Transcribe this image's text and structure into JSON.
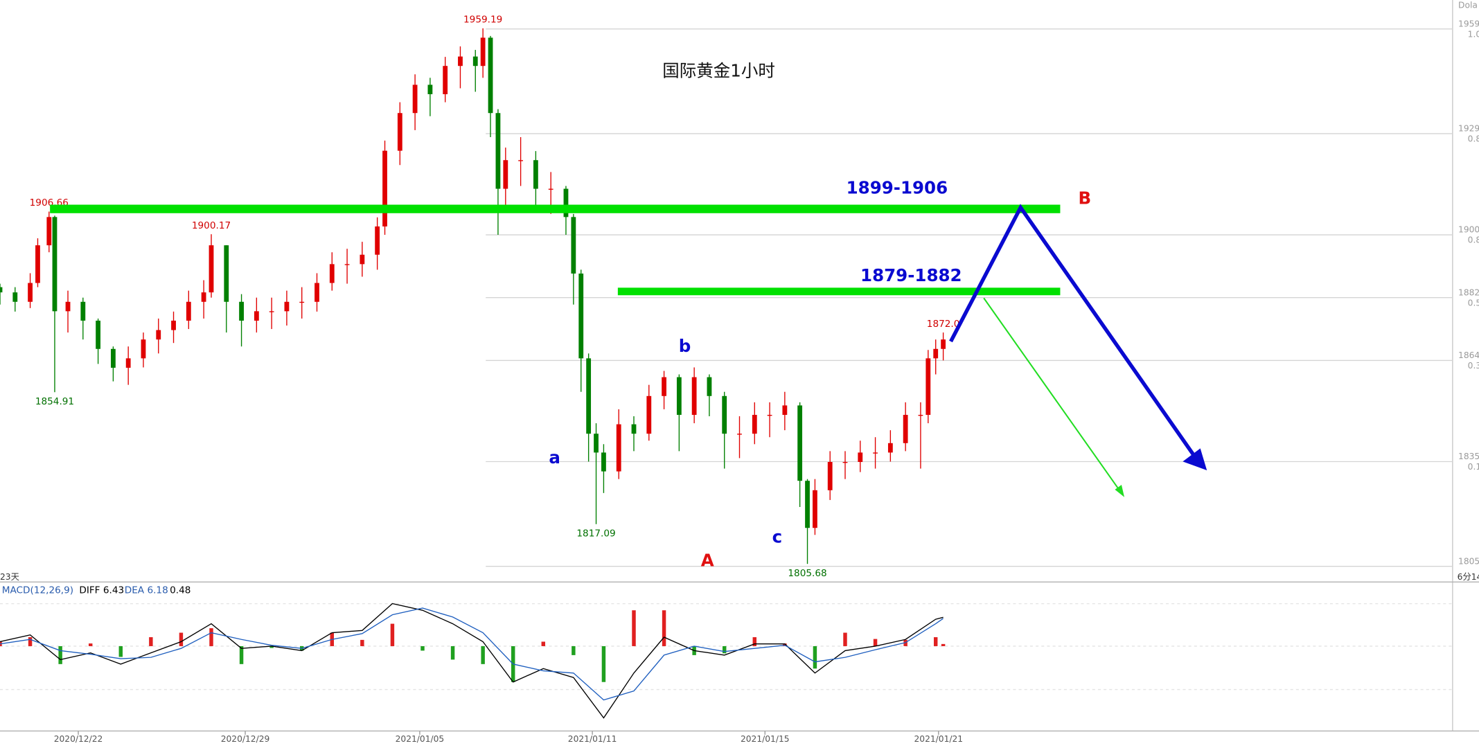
{
  "chart_data": [
    {
      "type": "candlestick",
      "title": "国际黄金1小时",
      "x": [
        0,
        8,
        16,
        20,
        26,
        29,
        36,
        44,
        52,
        60,
        68,
        76,
        84,
        92,
        100,
        108,
        112,
        120,
        128,
        136,
        144,
        152,
        160,
        168,
        176,
        184,
        192,
        200,
        204,
        212,
        220,
        228,
        236,
        244,
        252,
        256,
        260,
        264,
        268,
        276,
        284,
        292,
        300,
        304,
        308,
        312,
        316,
        320,
        328,
        336,
        344,
        352,
        360,
        368,
        376,
        384,
        392,
        400,
        408,
        416,
        424,
        428,
        432,
        440,
        448,
        456,
        464,
        472,
        480,
        488,
        492,
        496,
        500
      ],
      "open": [
        1885,
        1883.5,
        1880.8,
        1886.2,
        1897.0,
        1905.1,
        1878.1,
        1880.8,
        1875.4,
        1867.3,
        1861.9,
        1864.6,
        1870.0,
        1872.7,
        1875.4,
        1880.8,
        1883.5,
        1897.0,
        1880.8,
        1875.4,
        1878.1,
        1878.1,
        1880.8,
        1880.8,
        1886.2,
        1891.6,
        1891.6,
        1894.3,
        1902.4,
        1924.1,
        1934.9,
        1943.0,
        1940.3,
        1948.4,
        1951.1,
        1948.4,
        1956.5,
        1934.9,
        1913.2,
        1921.4,
        1921.4,
        1913.2,
        1913.2,
        1905.1,
        1888.9,
        1864.6,
        1843.0,
        1837.6,
        1832.2,
        1845.7,
        1843.0,
        1853.8,
        1859.2,
        1848.4,
        1859.2,
        1853.8,
        1843.0,
        1843.0,
        1848.4,
        1848.4,
        1851.1,
        1829.5,
        1816.0,
        1826.8,
        1834.9,
        1834.9,
        1837.6,
        1837.6,
        1840.3,
        1848.4,
        1848.4,
        1864.6,
        1867.3
      ],
      "high": [
        1886,
        1885,
        1889,
        1899,
        1906.66,
        1905.5,
        1884,
        1882,
        1876,
        1868,
        1868,
        1872,
        1876,
        1878,
        1884,
        1887,
        1900.17,
        1897,
        1883,
        1882,
        1882,
        1884,
        1885,
        1889,
        1895,
        1896,
        1898,
        1905,
        1927,
        1938,
        1946,
        1945,
        1951,
        1954,
        1953,
        1959.19,
        1957,
        1936,
        1925,
        1928,
        1924,
        1918,
        1914,
        1906,
        1890,
        1866,
        1846,
        1840,
        1850,
        1848,
        1857,
        1861,
        1860,
        1862,
        1860,
        1855,
        1848,
        1852,
        1852,
        1855,
        1852,
        1830,
        1830,
        1838,
        1838,
        1841,
        1842,
        1844,
        1852,
        1852,
        1867,
        1870,
        1872
      ],
      "low": [
        1880,
        1878,
        1879,
        1885,
        1895,
        1854.91,
        1872,
        1870,
        1863,
        1858,
        1857,
        1862,
        1866,
        1869,
        1873,
        1876,
        1882,
        1872,
        1868,
        1872,
        1873,
        1874,
        1876,
        1878,
        1884,
        1886,
        1888,
        1890,
        1900,
        1920,
        1930,
        1934,
        1938,
        1942,
        1941,
        1945,
        1928,
        1900,
        1908,
        1914,
        1908,
        1906,
        1900,
        1880,
        1855,
        1835,
        1817.09,
        1826,
        1830,
        1838,
        1841,
        1850,
        1838,
        1846,
        1848,
        1833,
        1836,
        1840,
        1842,
        1844,
        1822,
        1805.68,
        1814,
        1824,
        1830,
        1832,
        1833,
        1835,
        1838,
        1833,
        1846,
        1860,
        1864
      ],
      "close": [
        1883.5,
        1880.8,
        1886.2,
        1897.0,
        1905.1,
        1878.1,
        1880.8,
        1875.4,
        1867.3,
        1861.9,
        1864.6,
        1870.0,
        1872.7,
        1875.4,
        1880.8,
        1883.5,
        1897.0,
        1880.8,
        1875.4,
        1878.1,
        1878.1,
        1880.8,
        1880.8,
        1886.2,
        1891.6,
        1891.6,
        1894.3,
        1902.4,
        1924.1,
        1934.9,
        1943.0,
        1940.3,
        1948.4,
        1951.1,
        1948.4,
        1956.5,
        1934.9,
        1913.2,
        1921.4,
        1921.4,
        1913.2,
        1913.2,
        1905.1,
        1888.9,
        1864.6,
        1843.0,
        1837.6,
        1832.2,
        1845.7,
        1843.0,
        1853.8,
        1859.2,
        1848.4,
        1859.2,
        1853.8,
        1843.0,
        1843.0,
        1848.4,
        1848.4,
        1851.1,
        1829.5,
        1816.0,
        1826.8,
        1834.9,
        1834.9,
        1837.6,
        1837.6,
        1840.3,
        1848.4,
        1848.4,
        1864.6,
        1867.3,
        1870.0
      ],
      "up_color": "#e00000",
      "down_color": "#008000",
      "xlim": [
        0,
        770
      ],
      "ylim": [
        1800.5,
        1967.3
      ],
      "yticks": [
        1959,
        1929,
        1900,
        1882,
        1864,
        1835,
        1805
      ],
      "fib_labels": [
        "1.0",
        "0.8",
        "0.8",
        "0.5",
        "0.3",
        "0.1"
      ],
      "xticks": [
        {
          "value": 41.5,
          "label": "2020/12/22"
        },
        {
          "value": 130,
          "label": "2020/12/29"
        },
        {
          "value": 222.5,
          "label": "2021/01/05"
        },
        {
          "value": 314,
          "label": "2021/01/11"
        },
        {
          "value": 405.5,
          "label": "2021/01/15"
        },
        {
          "value": 497.5,
          "label": "2021/01/21"
        }
      ],
      "extreme_labels": [
        {
          "x": 256,
          "value": 1959.19,
          "color": "#d00000",
          "side": "above"
        },
        {
          "x": 26,
          "value": 1906.66,
          "color": "#d00000",
          "side": "above"
        },
        {
          "x": 112,
          "value": 1900.17,
          "color": "#d00000",
          "side": "above"
        },
        {
          "x": 29,
          "value": 1854.91,
          "color": "#007000",
          "side": "below"
        },
        {
          "x": 316,
          "value": 1817.09,
          "color": "#007000",
          "side": "below"
        },
        {
          "x": 428,
          "value": 1805.68,
          "color": "#007000",
          "side": "below"
        },
        {
          "x": 500,
          "value": 1872,
          "label": "1872.0",
          "color": "#d00000",
          "side": "above"
        }
      ],
      "zone_labels": [
        "1899-1906",
        "1879-1882"
      ],
      "wave_labels": [
        "a",
        "b",
        "c",
        "A",
        "B"
      ],
      "corner_labels": [
        "Dola",
        "6分14",
        "23天"
      ]
    },
    {
      "type": "macd",
      "title": "MACD(12,26,9)",
      "x": [
        0,
        16,
        32,
        48,
        64,
        80,
        96,
        112,
        128,
        144,
        160,
        176,
        192,
        208,
        224,
        240,
        256,
        272,
        288,
        304,
        320,
        336,
        352,
        368,
        384,
        400,
        416,
        432,
        448,
        464,
        480,
        496,
        500
      ],
      "xlim": [
        0,
        770
      ],
      "ylim": [
        -18.3,
        12
      ],
      "series": [
        {
          "name": "DIFF",
          "color": "#000000",
          "values": [
            1.0,
            2.5,
            -3.0,
            -1.5,
            -4.0,
            -1.5,
            1.0,
            5.0,
            -0.5,
            0,
            -1.0,
            3.0,
            3.5,
            9.5,
            8.0,
            5.0,
            1.0,
            -8.0,
            -5.0,
            -7.0,
            -16.0,
            -6.0,
            2.0,
            -1.0,
            -2.0,
            0.5,
            0.5,
            -6.0,
            -1.0,
            0,
            1.5,
            6.0,
            6.43
          ]
        },
        {
          "name": "DEA",
          "color": "#1f5fbf",
          "values": [
            0.5,
            1.5,
            -1.0,
            -1.8,
            -2.8,
            -2.5,
            -0.5,
            3.0,
            1.5,
            0.2,
            -0.5,
            1.5,
            2.8,
            7.0,
            8.5,
            6.5,
            3.0,
            -4.0,
            -5.5,
            -6.0,
            -12.0,
            -10.0,
            -2.0,
            0.0,
            -1.2,
            -0.5,
            0.2,
            -3.5,
            -2.5,
            -0.8,
            0.8,
            5.0,
            6.18
          ]
        }
      ],
      "hist": {
        "up_color": "#e02020",
        "down_color": "#20a020",
        "values": [
          1.0,
          2.0,
          -4.0,
          0.6,
          -2.4,
          2.0,
          3.0,
          4.0,
          -4.0,
          -0.4,
          -1.0,
          3.0,
          1.4,
          5.0,
          -1.0,
          -3.0,
          -4.0,
          -8.0,
          1.0,
          -2.0,
          -8.0,
          8.0,
          8.0,
          -2.0,
          -1.6,
          2.0,
          0.6,
          -5.0,
          3.0,
          1.6,
          1.4,
          2.0,
          0.48
        ]
      }
    }
  ]
}
